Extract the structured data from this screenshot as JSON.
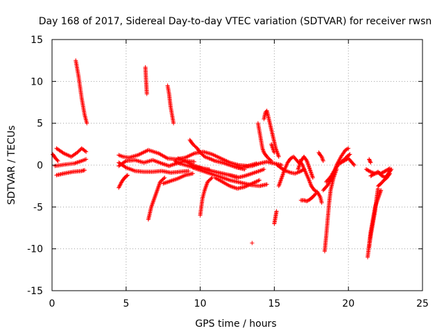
{
  "chart_data": {
    "type": "scatter",
    "title": "Day 168 of 2017, Sidereal Day-to-day VTEC variation (SDTVAR) for receiver rwsn",
    "xlabel": "GPS time / hours",
    "ylabel": "SDTVAR / TECUs",
    "xlim": [
      0,
      25
    ],
    "ylim": [
      -15,
      15
    ],
    "xticks": [
      0,
      5,
      10,
      15,
      20,
      25
    ],
    "xtick_labels": [
      "0",
      "5",
      "10",
      "15",
      "20",
      "25"
    ],
    "yticks": [
      -15,
      -10,
      -5,
      0,
      5,
      10,
      15
    ],
    "ytick_labels": [
      "-15",
      "-10",
      "-5",
      "0",
      "5",
      "10",
      "15"
    ],
    "grid": true,
    "marker": "+",
    "color": "#ff0000",
    "arcs": [
      {
        "x": [
          0.05,
          0.2,
          0.4
        ],
        "y": [
          1.3,
          0.9,
          0.5
        ]
      },
      {
        "x": [
          0.3,
          0.8,
          1.3,
          1.7,
          2.0,
          2.3
        ],
        "y": [
          2.0,
          1.4,
          1.0,
          1.5,
          2.0,
          1.6
        ]
      },
      {
        "x": [
          0.2,
          0.6,
          1.0,
          1.5,
          2.0,
          2.3
        ],
        "y": [
          -0.1,
          0.0,
          0.1,
          0.2,
          0.5,
          0.7
        ]
      },
      {
        "x": [
          0.3,
          0.8,
          1.4,
          2.0,
          2.2
        ],
        "y": [
          -1.2,
          -1.0,
          -0.8,
          -0.7,
          -0.6
        ]
      },
      {
        "x": [
          1.6,
          1.8,
          2.0,
          2.2,
          2.35
        ],
        "y": [
          12.5,
          10.5,
          8.0,
          6.0,
          5.0
        ]
      },
      {
        "x": [
          4.5,
          4.8,
          5.2,
          5.8,
          6.5,
          7.2,
          7.8,
          8.4,
          9.0,
          9.6,
          10.2,
          10.8,
          11.4,
          12.0,
          12.6,
          13.2,
          13.8
        ],
        "y": [
          1.2,
          1.0,
          0.9,
          1.2,
          1.8,
          1.4,
          0.8,
          0.7,
          0.9,
          1.4,
          1.6,
          1.3,
          0.8,
          0.3,
          0.0,
          -0.1,
          0.2
        ]
      },
      {
        "x": [
          4.5,
          5.0,
          5.6,
          6.2,
          6.8,
          7.4,
          7.9,
          8.4,
          9.0,
          9.6
        ],
        "y": [
          -0.1,
          0.5,
          0.6,
          0.3,
          0.6,
          0.2,
          -0.1,
          0.2,
          0.5,
          0.4
        ]
      },
      {
        "x": [
          4.5,
          5.0,
          5.6,
          6.2,
          6.8,
          7.4,
          8.0,
          8.6,
          9.2
        ],
        "y": [
          0.3,
          -0.3,
          -0.7,
          -0.8,
          -0.8,
          -0.7,
          -0.9,
          -0.8,
          -0.7
        ]
      },
      {
        "x": [
          4.5,
          4.7,
          4.9,
          5.1
        ],
        "y": [
          -2.7,
          -2.0,
          -1.5,
          -1.2
        ]
      },
      {
        "x": [
          6.3,
          6.35,
          6.4
        ],
        "y": [
          11.7,
          10.0,
          8.5
        ]
      },
      {
        "x": [
          7.8,
          7.9,
          8.0,
          8.1,
          8.2
        ],
        "y": [
          9.5,
          8.5,
          7.0,
          6.0,
          5.0
        ]
      },
      {
        "x": [
          6.5,
          6.7,
          6.9,
          7.1,
          7.3,
          7.6
        ],
        "y": [
          -6.5,
          -5.0,
          -4.0,
          -3.0,
          -2.0,
          -1.5
        ]
      },
      {
        "x": [
          7.5,
          8.0,
          8.5,
          9.0,
          9.5
        ],
        "y": [
          -2.2,
          -1.9,
          -1.6,
          -1.2,
          -1.0
        ]
      },
      {
        "x": [
          8.3,
          8.6,
          9.0,
          9.4,
          9.8,
          10.2,
          10.6
        ],
        "y": [
          0.5,
          0.2,
          0.0,
          -0.2,
          -0.3,
          -0.4,
          -0.5
        ]
      },
      {
        "x": [
          9.3,
          9.5,
          9.8,
          10.0,
          10.3,
          10.6,
          11.0,
          11.5,
          12.0,
          12.5,
          13.0
        ],
        "y": [
          3.0,
          2.5,
          2.0,
          1.5,
          1.0,
          0.8,
          0.5,
          0.3,
          0.0,
          -0.3,
          -0.5
        ]
      },
      {
        "x": [
          8.5,
          9.0,
          9.5,
          10.0,
          10.5,
          11.0,
          11.5,
          12.0,
          12.5
        ],
        "y": [
          0.8,
          0.5,
          0.0,
          -0.3,
          -0.6,
          -0.8,
          -1.0,
          -1.2,
          -1.4
        ]
      },
      {
        "x": [
          9.5,
          10.0,
          10.5,
          11.0,
          11.5,
          12.0,
          12.5,
          13.0,
          13.5,
          14.0,
          14.5
        ],
        "y": [
          -0.3,
          -0.6,
          -0.9,
          -1.2,
          -1.5,
          -1.8,
          -2.0,
          -2.2,
          -2.4,
          -2.5,
          -2.3
        ]
      },
      {
        "x": [
          10.0,
          10.15,
          10.3,
          10.5,
          10.8
        ],
        "y": [
          -6.0,
          -4.0,
          -3.0,
          -2.0,
          -1.5
        ]
      },
      {
        "x": [
          11.0,
          11.5,
          12.0,
          12.5,
          13.0,
          13.5,
          14.0
        ],
        "y": [
          -1.5,
          -2.0,
          -2.5,
          -2.8,
          -2.6,
          -2.2,
          -1.8
        ]
      },
      {
        "x": [
          12.0,
          12.5,
          13.0,
          13.5,
          14.0,
          14.3
        ],
        "y": [
          -1.2,
          -1.5,
          -1.3,
          -1.0,
          -0.7,
          -0.5
        ]
      },
      {
        "x": [
          12.5,
          13.0,
          13.5,
          14.0,
          14.5,
          15.0,
          15.5
        ],
        "y": [
          -0.3,
          -0.2,
          -0.1,
          0.2,
          0.4,
          0.2,
          0.0
        ]
      },
      {
        "x": [
          13.5
        ],
        "y": [
          -9.3
        ]
      },
      {
        "x": [
          13.9,
          14.0,
          14.1,
          14.2,
          14.3,
          14.5,
          14.8
        ],
        "y": [
          5.0,
          4.0,
          3.0,
          2.0,
          1.5,
          1.0,
          0.5
        ]
      },
      {
        "x": [
          14.3,
          14.4,
          14.5,
          14.7,
          14.9,
          15.1,
          15.3
        ],
        "y": [
          5.5,
          6.3,
          6.5,
          5.0,
          3.5,
          2.0,
          1.0
        ]
      },
      {
        "x": [
          14.8,
          14.9,
          15.0
        ],
        "y": [
          2.5,
          2.0,
          1.5
        ]
      },
      {
        "x": [
          15.0,
          15.05,
          15.1,
          15.15
        ],
        "y": [
          -7.0,
          -6.5,
          -6.0,
          -5.5
        ]
      },
      {
        "x": [
          15.3,
          15.5,
          15.7,
          15.9,
          16.1,
          16.3,
          16.5,
          16.7
        ],
        "y": [
          -2.5,
          -1.5,
          -0.5,
          0.3,
          0.8,
          1.0,
          0.6,
          0.2
        ]
      },
      {
        "x": [
          15.2,
          15.5,
          15.8,
          16.1,
          16.4,
          16.7,
          17.0
        ],
        "y": [
          0.0,
          -0.4,
          -0.7,
          -0.9,
          -1.0,
          -0.8,
          -0.5
        ]
      },
      {
        "x": [
          16.7,
          16.9,
          17.1,
          17.3,
          17.5
        ],
        "y": [
          0.5,
          0.0,
          -0.8,
          -1.6,
          -2.5
        ]
      },
      {
        "x": [
          16.6,
          16.8,
          17.0,
          17.2,
          17.4,
          17.6
        ],
        "y": [
          -0.5,
          0.5,
          1.0,
          0.5,
          -0.5,
          -1.5
        ]
      },
      {
        "x": [
          16.8,
          17.0,
          17.2,
          17.4,
          17.6,
          17.8
        ],
        "y": [
          -4.2,
          -4.2,
          -4.3,
          -4.1,
          -3.8,
          -3.4
        ]
      },
      {
        "x": [
          17.5,
          17.7,
          17.9,
          18.1,
          18.2
        ],
        "y": [
          -2.5,
          -3.0,
          -3.2,
          -3.8,
          -4.5
        ]
      },
      {
        "x": [
          18.0,
          18.1,
          18.2,
          18.3
        ],
        "y": [
          1.5,
          1.2,
          1.0,
          0.5
        ]
      },
      {
        "x": [
          18.3,
          18.6,
          18.9,
          19.2,
          19.5,
          19.8,
          20.0
        ],
        "y": [
          -3.0,
          -2.4,
          -1.5,
          0.0,
          1.0,
          1.8,
          2.0
        ]
      },
      {
        "x": [
          18.5,
          18.8,
          19.0,
          19.3,
          19.6,
          19.9,
          20.1
        ],
        "y": [
          -2.0,
          -1.4,
          -0.8,
          0.0,
          0.5,
          1.0,
          1.3
        ]
      },
      {
        "x": [
          18.4,
          18.5,
          18.6,
          18.7,
          18.8,
          19.0,
          19.2
        ],
        "y": [
          -10.3,
          -8.5,
          -6.5,
          -4.5,
          -3.0,
          -1.5,
          -0.5
        ]
      },
      {
        "x": [
          19.5,
          19.8,
          20.0,
          20.2,
          20.4
        ],
        "y": [
          0.3,
          0.6,
          0.8,
          0.4,
          0.0
        ]
      },
      {
        "x": [
          21.3,
          21.4,
          21.5,
          21.6,
          21.7,
          21.8,
          22.0,
          22.2
        ],
        "y": [
          -11.0,
          -9.5,
          -8.0,
          -7.0,
          -6.0,
          -5.0,
          -4.0,
          -3.0
        ]
      },
      {
        "x": [
          21.4,
          21.5,
          21.6,
          21.7,
          21.8,
          21.9,
          22.0
        ],
        "y": [
          -9.8,
          -8.5,
          -7.5,
          -6.5,
          -5.5,
          -4.0,
          -2.8
        ]
      },
      {
        "x": [
          21.4,
          21.45,
          21.5
        ],
        "y": [
          0.7,
          0.5,
          0.3
        ]
      },
      {
        "x": [
          21.2,
          21.5,
          21.8,
          22.0,
          22.2,
          22.5,
          22.8
        ],
        "y": [
          -0.5,
          -0.8,
          -1.0,
          -0.9,
          -1.0,
          -0.7,
          -0.4
        ]
      },
      {
        "x": [
          21.5,
          21.8,
          22.0,
          22.2,
          22.5,
          22.7,
          22.9
        ],
        "y": [
          -1.3,
          -1.0,
          -0.8,
          -1.2,
          -1.5,
          -1.0,
          -0.5
        ]
      },
      {
        "x": [
          22.0,
          22.2,
          22.4,
          22.6,
          22.8
        ],
        "y": [
          -2.5,
          -2.2,
          -1.8,
          -1.5,
          -1.0
        ]
      }
    ]
  }
}
